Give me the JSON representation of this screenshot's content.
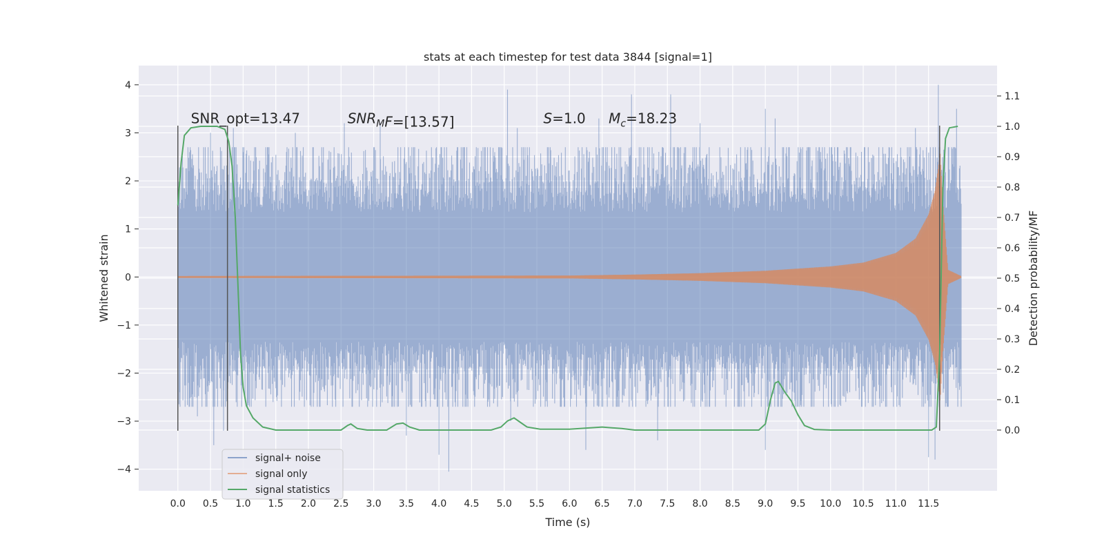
{
  "chart_data": {
    "type": "line",
    "title": "stats at each timestep for test data 3844 [signal=1]",
    "xlabel": "Time (s)",
    "ylabel": "Whitened strain",
    "y2label": "Detection probability/MF",
    "xlim": [
      -0.6,
      12.55
    ],
    "ylim": [
      -4.45,
      4.4
    ],
    "y2lim": [
      -0.2,
      1.2
    ],
    "x_ticks": [
      0.0,
      0.5,
      1.0,
      1.5,
      2.0,
      2.5,
      3.0,
      3.5,
      4.0,
      4.5,
      5.0,
      5.5,
      6.0,
      6.5,
      7.0,
      7.5,
      8.0,
      8.5,
      9.0,
      9.5,
      10.0,
      10.5,
      11.0,
      11.5
    ],
    "x_tick_labels": [
      "0.0",
      "0.5",
      "1.0",
      "1.5",
      "2.0",
      "2.5",
      "3.0",
      "3.5",
      "4.0",
      "4.5",
      "5.0",
      "5.5",
      "6.0",
      "6.5",
      "7.0",
      "7.5",
      "8.0",
      "8.5",
      "9.0",
      "9.5",
      "10.0",
      "10.5",
      "11.0",
      "11.5"
    ],
    "y_ticks": [
      -4,
      -3,
      -2,
      -1,
      0,
      1,
      2,
      3,
      4
    ],
    "y_tick_labels": [
      "−4",
      "−3",
      "−2",
      "−1",
      "0",
      "1",
      "2",
      "3",
      "4"
    ],
    "y2_ticks": [
      0.0,
      0.1,
      0.2,
      0.3,
      0.4,
      0.5,
      0.6,
      0.7,
      0.8,
      0.9,
      1.0,
      1.1
    ],
    "y2_tick_labels": [
      "0.0",
      "0.1",
      "0.2",
      "0.3",
      "0.4",
      "0.5",
      "0.6",
      "0.7",
      "0.8",
      "0.9",
      "1.0",
      "1.1"
    ],
    "grid": true,
    "legend_position": "lower-left",
    "annotations": [
      {
        "text": "SNR_opt=13.47",
        "x": 0.2,
        "y": 3.2
      },
      {
        "text": "SNR_MF=[13.57]",
        "x": 2.6,
        "y": 3.2,
        "parts": [
          [
            "SNR",
            "i"
          ],
          [
            "M",
            "isub"
          ],
          [
            "F",
            "i"
          ],
          [
            "=[13.57]",
            "n"
          ]
        ]
      },
      {
        "text": "S=1.0",
        "x": 5.6,
        "y": 3.2,
        "parts": [
          [
            "S",
            "i"
          ],
          [
            "=1.0",
            "n"
          ]
        ]
      },
      {
        "text": "M_c=18.23",
        "x": 6.6,
        "y": 3.2,
        "parts": [
          [
            "M",
            "i"
          ],
          [
            "c",
            "isub"
          ],
          [
            "=18.23",
            "n"
          ]
        ]
      }
    ],
    "vlines": [
      {
        "x": 0.0,
        "ymin": -3.2,
        "ymax": 3.15
      },
      {
        "x": 0.76,
        "ymin": -3.2,
        "ymax": 3.15
      },
      {
        "x": 11.67,
        "ymin": -3.2,
        "ymax": 3.15
      }
    ],
    "series": [
      {
        "name": "signal+ noise",
        "color": "#4c72b0",
        "opacity": 0.5,
        "x_range": [
          0.0,
          12.0
        ],
        "description_envelope": {
          "typical_amplitude": 1.5,
          "max_positive": [
            [
              0.5,
              3.0
            ],
            [
              0.85,
              3.1
            ],
            [
              1.0,
              2.6
            ],
            [
              1.8,
              3.0
            ],
            [
              2.55,
              3.2
            ],
            [
              3.0,
              2.7
            ],
            [
              3.1,
              3.2
            ],
            [
              5.05,
              3.9
            ],
            [
              5.2,
              3.1
            ],
            [
              6.45,
              3.3
            ],
            [
              6.95,
              3.8
            ],
            [
              7.55,
              3.8
            ],
            [
              8.0,
              3.2
            ],
            [
              9.0,
              3.5
            ],
            [
              9.15,
              3.3
            ],
            [
              11.3,
              3.1
            ],
            [
              11.65,
              4.0
            ],
            [
              11.93,
              3.5
            ]
          ],
          "max_negative": [
            [
              0.3,
              -2.9
            ],
            [
              0.55,
              -3.5
            ],
            [
              0.7,
              -3.2
            ],
            [
              3.5,
              -3.3
            ],
            [
              4.0,
              -3.7
            ],
            [
              4.15,
              -4.05
            ],
            [
              5.1,
              -3.0
            ],
            [
              6.25,
              -3.6
            ],
            [
              7.35,
              -3.4
            ],
            [
              9.0,
              -3.6
            ],
            [
              11.5,
              -3.75
            ],
            [
              11.6,
              -3.8
            ]
          ]
        }
      },
      {
        "name": "signal only",
        "color": "#dd8452",
        "opacity": 0.5,
        "x_range": [
          0.0,
          12.0
        ],
        "envelope": [
          [
            0.0,
            0.02
          ],
          [
            6.0,
            0.03
          ],
          [
            7.0,
            0.05
          ],
          [
            8.0,
            0.08
          ],
          [
            9.0,
            0.13
          ],
          [
            10.0,
            0.22
          ],
          [
            10.5,
            0.3
          ],
          [
            11.0,
            0.5
          ],
          [
            11.3,
            0.8
          ],
          [
            11.5,
            1.3
          ],
          [
            11.6,
            1.8
          ],
          [
            11.68,
            2.6
          ],
          [
            11.72,
            1.6
          ],
          [
            11.8,
            0.15
          ],
          [
            12.0,
            0.02
          ]
        ]
      },
      {
        "name": "signal statistics",
        "color": "#55a868",
        "axis": "right",
        "points": [
          [
            0.0,
            0.74
          ],
          [
            0.05,
            0.88
          ],
          [
            0.1,
            0.97
          ],
          [
            0.2,
            0.995
          ],
          [
            0.35,
            1.0
          ],
          [
            0.6,
            1.0
          ],
          [
            0.72,
            0.99
          ],
          [
            0.78,
            0.95
          ],
          [
            0.83,
            0.87
          ],
          [
            0.88,
            0.7
          ],
          [
            0.92,
            0.48
          ],
          [
            0.96,
            0.25
          ],
          [
            1.0,
            0.14
          ],
          [
            1.05,
            0.08
          ],
          [
            1.15,
            0.04
          ],
          [
            1.3,
            0.01
          ],
          [
            1.5,
            0.0
          ],
          [
            2.0,
            0.0
          ],
          [
            2.5,
            0.0
          ],
          [
            2.6,
            0.015
          ],
          [
            2.65,
            0.02
          ],
          [
            2.75,
            0.005
          ],
          [
            2.9,
            0.0
          ],
          [
            3.2,
            0.0
          ],
          [
            3.35,
            0.02
          ],
          [
            3.45,
            0.023
          ],
          [
            3.55,
            0.01
          ],
          [
            3.7,
            0.0
          ],
          [
            4.0,
            0.0
          ],
          [
            4.8,
            0.0
          ],
          [
            4.95,
            0.01
          ],
          [
            5.05,
            0.03
          ],
          [
            5.15,
            0.04
          ],
          [
            5.25,
            0.025
          ],
          [
            5.35,
            0.01
          ],
          [
            5.55,
            0.003
          ],
          [
            6.0,
            0.003
          ],
          [
            6.5,
            0.01
          ],
          [
            6.8,
            0.005
          ],
          [
            7.0,
            0.0
          ],
          [
            8.0,
            0.0
          ],
          [
            8.9,
            0.0
          ],
          [
            9.0,
            0.02
          ],
          [
            9.08,
            0.1
          ],
          [
            9.15,
            0.155
          ],
          [
            9.2,
            0.16
          ],
          [
            9.3,
            0.125
          ],
          [
            9.4,
            0.095
          ],
          [
            9.5,
            0.05
          ],
          [
            9.6,
            0.015
          ],
          [
            9.75,
            0.002
          ],
          [
            10.0,
            0.0
          ],
          [
            11.0,
            0.0
          ],
          [
            11.55,
            0.0
          ],
          [
            11.62,
            0.01
          ],
          [
            11.67,
            0.25
          ],
          [
            11.72,
            0.8
          ],
          [
            11.76,
            0.96
          ],
          [
            11.82,
            0.995
          ],
          [
            11.95,
            1.0
          ]
        ]
      }
    ]
  }
}
